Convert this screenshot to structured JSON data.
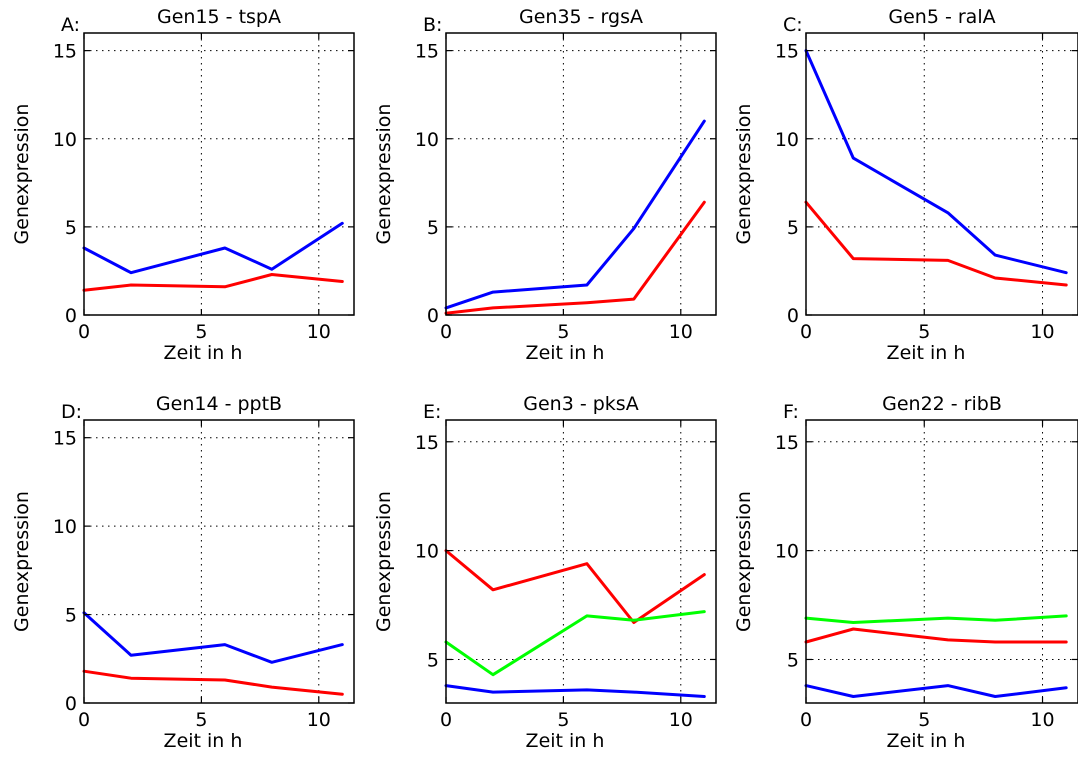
{
  "chart_data": [
    {
      "type": "line",
      "panel_label": "A:",
      "title": "Gen15 - tspA",
      "xlabel": "Zeit in h",
      "ylabel": "Genexpression",
      "xlim": [
        0,
        11.5
      ],
      "ylim": [
        0,
        16
      ],
      "xticks": [
        0,
        5,
        10
      ],
      "yticks": [
        0,
        5,
        10,
        15
      ],
      "grid": true,
      "series": [
        {
          "color": "#0000ff",
          "x": [
            0,
            2,
            6,
            8,
            11
          ],
          "y": [
            3.8,
            2.4,
            3.8,
            2.6,
            5.2
          ]
        },
        {
          "color": "#ff0000",
          "x": [
            0,
            2,
            6,
            8,
            11
          ],
          "y": [
            1.4,
            1.7,
            1.6,
            2.3,
            1.9
          ]
        }
      ]
    },
    {
      "type": "line",
      "panel_label": "B:",
      "title": "Gen35 - rgsA",
      "xlabel": "Zeit in h",
      "ylabel": "Genexpression",
      "xlim": [
        0,
        11.5
      ],
      "ylim": [
        0,
        16
      ],
      "xticks": [
        0,
        5,
        10
      ],
      "yticks": [
        0,
        5,
        10,
        15
      ],
      "grid": true,
      "series": [
        {
          "color": "#0000ff",
          "x": [
            0,
            2,
            6,
            8,
            11
          ],
          "y": [
            0.4,
            1.3,
            1.7,
            4.9,
            11.0
          ]
        },
        {
          "color": "#ff0000",
          "x": [
            0,
            2,
            6,
            8,
            11
          ],
          "y": [
            0.1,
            0.4,
            0.7,
            0.9,
            6.4
          ]
        }
      ]
    },
    {
      "type": "line",
      "panel_label": "C:",
      "title": "Gen5 - ralA",
      "xlabel": "Zeit in h",
      "ylabel": "Genexpression",
      "xlim": [
        0,
        11.5
      ],
      "ylim": [
        0,
        16
      ],
      "xticks": [
        0,
        5,
        10
      ],
      "yticks": [
        0,
        5,
        10,
        15
      ],
      "grid": true,
      "series": [
        {
          "color": "#0000ff",
          "x": [
            0,
            2,
            6,
            8,
            11
          ],
          "y": [
            15.0,
            8.9,
            5.8,
            3.4,
            2.4
          ]
        },
        {
          "color": "#ff0000",
          "x": [
            0,
            2,
            6,
            8,
            11
          ],
          "y": [
            6.4,
            3.2,
            3.1,
            2.1,
            1.7
          ]
        }
      ]
    },
    {
      "type": "line",
      "panel_label": "D:",
      "title": "Gen14 - pptB",
      "xlabel": "Zeit in h",
      "ylabel": "Genexpression",
      "xlim": [
        0,
        11.5
      ],
      "ylim": [
        0,
        16
      ],
      "xticks": [
        0,
        5,
        10
      ],
      "yticks": [
        0,
        5,
        10,
        15
      ],
      "grid": true,
      "series": [
        {
          "color": "#0000ff",
          "x": [
            0,
            2,
            6,
            8,
            11
          ],
          "y": [
            5.1,
            2.7,
            3.3,
            2.3,
            3.3
          ]
        },
        {
          "color": "#ff0000",
          "x": [
            0,
            2,
            6,
            8,
            11
          ],
          "y": [
            1.8,
            1.4,
            1.3,
            0.9,
            0.5
          ]
        }
      ]
    },
    {
      "type": "line",
      "panel_label": "E:",
      "title": "Gen3 - pksA",
      "xlabel": "Zeit in h",
      "ylabel": "Genexpression",
      "xlim": [
        0,
        11.5
      ],
      "ylim": [
        3,
        16
      ],
      "xticks": [
        0,
        5,
        10
      ],
      "yticks": [
        5,
        10,
        15
      ],
      "grid": true,
      "series": [
        {
          "color": "#ff0000",
          "x": [
            0,
            2,
            6,
            8,
            11
          ],
          "y": [
            10.0,
            8.2,
            9.4,
            6.7,
            8.9
          ]
        },
        {
          "color": "#00ff00",
          "x": [
            0,
            2,
            6,
            8,
            11
          ],
          "y": [
            5.8,
            4.3,
            7.0,
            6.8,
            7.2
          ]
        },
        {
          "color": "#0000ff",
          "x": [
            0,
            2,
            6,
            8,
            11
          ],
          "y": [
            3.8,
            3.5,
            3.6,
            3.5,
            3.3
          ]
        }
      ]
    },
    {
      "type": "line",
      "panel_label": "F:",
      "title": "Gen22 - ribB",
      "xlabel": "Zeit in h",
      "ylabel": "Genexpression",
      "xlim": [
        0,
        11.5
      ],
      "ylim": [
        3,
        16
      ],
      "xticks": [
        0,
        5,
        10
      ],
      "yticks": [
        5,
        10,
        15
      ],
      "grid": true,
      "series": [
        {
          "color": "#00ff00",
          "x": [
            0,
            2,
            6,
            8,
            11
          ],
          "y": [
            6.9,
            6.7,
            6.9,
            6.8,
            7.0
          ]
        },
        {
          "color": "#ff0000",
          "x": [
            0,
            2,
            6,
            8,
            11
          ],
          "y": [
            5.8,
            6.4,
            5.9,
            5.8,
            5.8
          ]
        },
        {
          "color": "#0000ff",
          "x": [
            0,
            2,
            6,
            8,
            11
          ],
          "y": [
            3.8,
            3.3,
            3.8,
            3.3,
            3.7
          ]
        }
      ]
    }
  ]
}
